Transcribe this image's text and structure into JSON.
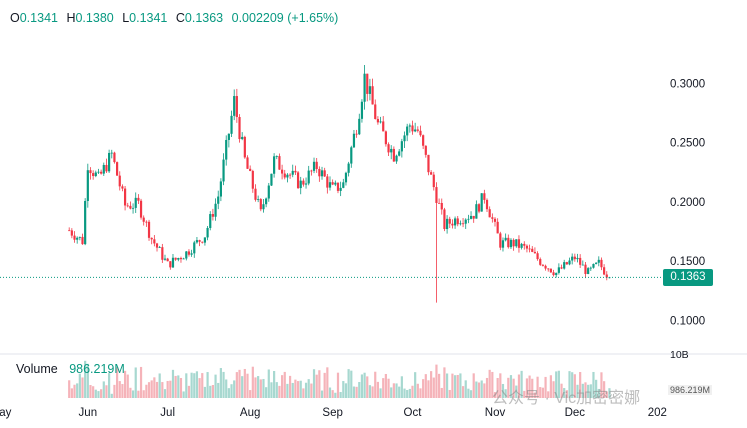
{
  "legend": {
    "open_label": "O",
    "open": "0.1341",
    "high_label": "H",
    "high": "0.1380",
    "low_label": "L",
    "low": "0.1341",
    "close_label": "C",
    "close": "0.1363",
    "change": "0.002209 (+1.65%)"
  },
  "volume_legend": {
    "label": "Volume",
    "value": "986.219M"
  },
  "last_price_tag": "0.1363",
  "volume_axis_label": "10B",
  "volume_tag": "986.219M",
  "watermark": "公众号 · Vic加密密娜",
  "colors": {
    "up": "#089981",
    "down": "#f23645",
    "volume_up": "#a7d8d0",
    "volume_down": "#f5b3b9"
  },
  "chart_data": {
    "type": "candlestick",
    "price_axis": {
      "ticks": [
        0.1,
        0.15,
        0.2,
        0.25,
        0.3
      ],
      "tick_labels": [
        "0.1000",
        "0.1500",
        "0.2000",
        "0.2500",
        "0.3000"
      ],
      "range": [
        0.075,
        0.345
      ]
    },
    "time_axis": {
      "labels": [
        "ay",
        "Jun",
        "Jul",
        "Aug",
        "Sep",
        "Oct",
        "Nov",
        "Dec",
        "202"
      ]
    },
    "last_price": 0.1363,
    "series": [
      {
        "name": "price",
        "points": [
          [
            "2024-05-25",
            0.176
          ],
          [
            "2024-05-30",
            0.167
          ],
          [
            "2024-06-01",
            0.233
          ],
          [
            "2024-06-05",
            0.219
          ],
          [
            "2024-06-10",
            0.24
          ],
          [
            "2024-06-15",
            0.197
          ],
          [
            "2024-06-20",
            0.198
          ],
          [
            "2024-06-25",
            0.169
          ],
          [
            "2024-07-01",
            0.147
          ],
          [
            "2024-07-08",
            0.157
          ],
          [
            "2024-07-15",
            0.172
          ],
          [
            "2024-07-20",
            0.205
          ],
          [
            "2024-07-26",
            0.285
          ],
          [
            "2024-07-30",
            0.235
          ],
          [
            "2024-08-05",
            0.19
          ],
          [
            "2024-08-10",
            0.235
          ],
          [
            "2024-08-15",
            0.225
          ],
          [
            "2024-08-20",
            0.215
          ],
          [
            "2024-08-26",
            0.23
          ],
          [
            "2024-09-01",
            0.21
          ],
          [
            "2024-09-05",
            0.215
          ],
          [
            "2024-09-10",
            0.265
          ],
          [
            "2024-09-13",
            0.305
          ],
          [
            "2024-09-18",
            0.265
          ],
          [
            "2024-09-24",
            0.24
          ],
          [
            "2024-09-30",
            0.265
          ],
          [
            "2024-10-03",
            0.26
          ],
          [
            "2024-10-08",
            0.22
          ],
          [
            "2024-10-10",
            0.205
          ],
          [
            "2024-10-13",
            0.18
          ],
          [
            "2024-10-17",
            0.185
          ],
          [
            "2024-10-24",
            0.19
          ],
          [
            "2024-10-28",
            0.205
          ],
          [
            "2024-11-03",
            0.165
          ],
          [
            "2024-11-08",
            0.165
          ],
          [
            "2024-11-13",
            0.16
          ],
          [
            "2024-11-18",
            0.15
          ],
          [
            "2024-11-24",
            0.14
          ],
          [
            "2024-12-01",
            0.153
          ],
          [
            "2024-12-06",
            0.14
          ],
          [
            "2024-12-10",
            0.148
          ],
          [
            "2024-12-14",
            0.1363
          ]
        ]
      }
    ],
    "volume_range": [
      0,
      10000000000
    ]
  }
}
